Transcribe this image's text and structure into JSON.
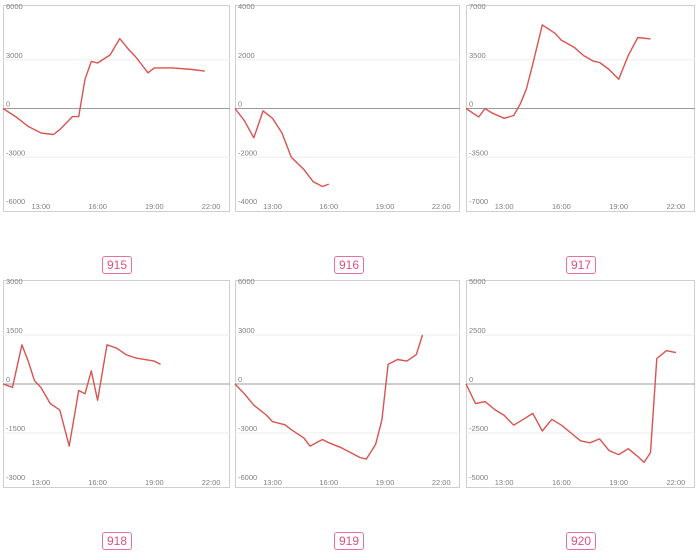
{
  "chart_data": [
    {
      "type": "line",
      "label": "915",
      "x_ticks": [
        "13:00",
        "16:00",
        "19:00",
        "22:00"
      ],
      "y_ticks": [
        6000,
        3000,
        0,
        -3000,
        -6000
      ],
      "ylim": [
        -6000,
        6000
      ],
      "xlim": [
        "11:00",
        "23:00"
      ],
      "grid": true,
      "x": [
        "11:00",
        "11:40",
        "12:20",
        "13:00",
        "13:40",
        "14:00",
        "14:40",
        "15:00",
        "15:20",
        "15:40",
        "16:00",
        "16:40",
        "17:10",
        "17:40",
        "18:00",
        "18:40",
        "19:00",
        "20:00",
        "21:00",
        "21:40"
      ],
      "series": [
        {
          "values": [
            0,
            -500,
            -1100,
            -1500,
            -1600,
            -1300,
            -500,
            -500,
            1800,
            2900,
            2800,
            3300,
            4300,
            3600,
            3200,
            2200,
            2500,
            2500,
            2400,
            2300
          ]
        }
      ]
    },
    {
      "type": "line",
      "label": "916",
      "x_ticks": [
        "13:00",
        "16:00",
        "19:00",
        "22:00"
      ],
      "y_ticks": [
        4000,
        2000,
        0,
        -2000,
        -4000
      ],
      "ylim": [
        -4000,
        4000
      ],
      "xlim": [
        "11:00",
        "23:00"
      ],
      "grid": true,
      "x": [
        "11:00",
        "11:30",
        "12:00",
        "12:30",
        "13:00",
        "13:30",
        "14:00",
        "14:40",
        "15:10",
        "15:40",
        "16:00"
      ],
      "series": [
        {
          "values": [
            0,
            -500,
            -1200,
            -100,
            -400,
            -1000,
            -2000,
            -2500,
            -3000,
            -3200,
            -3100
          ]
        }
      ]
    },
    {
      "type": "line",
      "label": "917",
      "x_ticks": [
        "13:00",
        "16:00",
        "19:00",
        "22:00"
      ],
      "y_ticks": [
        7000,
        3500,
        0,
        -3500,
        -7000
      ],
      "ylim": [
        -7000,
        7000
      ],
      "xlim": [
        "11:00",
        "23:00"
      ],
      "grid": true,
      "x": [
        "11:00",
        "11:40",
        "12:00",
        "12:20",
        "13:00",
        "13:30",
        "13:50",
        "14:10",
        "14:30",
        "15:00",
        "15:40",
        "16:00",
        "16:40",
        "17:10",
        "17:40",
        "18:00",
        "18:30",
        "19:00",
        "19:30",
        "20:00",
        "20:40"
      ],
      "series": [
        {
          "values": [
            0,
            -600,
            0,
            -300,
            -700,
            -500,
            300,
            1400,
            3200,
            6000,
            5400,
            4900,
            4400,
            3800,
            3400,
            3300,
            2800,
            2100,
            3800,
            5100,
            5000
          ]
        }
      ]
    },
    {
      "type": "line",
      "label": "918",
      "x_ticks": [
        "13:00",
        "16:00",
        "19:00",
        "22:00"
      ],
      "y_ticks": [
        3000,
        1500,
        0,
        -1500,
        -3000
      ],
      "ylim": [
        -3000,
        3000
      ],
      "xlim": [
        "11:00",
        "23:00"
      ],
      "grid": true,
      "x": [
        "11:00",
        "11:30",
        "12:00",
        "12:20",
        "12:40",
        "13:00",
        "13:30",
        "14:00",
        "14:30",
        "15:00",
        "15:20",
        "15:40",
        "16:00",
        "16:30",
        "17:00",
        "17:30",
        "18:00",
        "19:00",
        "19:20"
      ],
      "series": [
        {
          "values": [
            0,
            -100,
            1200,
            700,
            100,
            -100,
            -600,
            -800,
            -1900,
            -200,
            -300,
            400,
            -500,
            1200,
            1100,
            900,
            800,
            700,
            600
          ]
        }
      ]
    },
    {
      "type": "line",
      "label": "919",
      "x_ticks": [
        "13:00",
        "16:00",
        "19:00",
        "22:00"
      ],
      "y_ticks": [
        6000,
        3000,
        0,
        -3000,
        -6000
      ],
      "ylim": [
        -6000,
        6000
      ],
      "xlim": [
        "11:00",
        "23:00"
      ],
      "grid": true,
      "x": [
        "11:00",
        "11:30",
        "12:00",
        "12:40",
        "13:00",
        "13:40",
        "14:00",
        "14:40",
        "15:00",
        "15:40",
        "16:00",
        "16:40",
        "17:00",
        "17:40",
        "18:00",
        "18:30",
        "18:50",
        "19:10",
        "19:40",
        "20:10",
        "20:40",
        "21:00"
      ],
      "series": [
        {
          "values": [
            0,
            -600,
            -1300,
            -1900,
            -2300,
            -2500,
            -2800,
            -3300,
            -3800,
            -3400,
            -3600,
            -3900,
            -4100,
            -4500,
            -4600,
            -3700,
            -2200,
            1200,
            1500,
            1400,
            1800,
            3000
          ]
        }
      ]
    },
    {
      "type": "line",
      "label": "920",
      "x_ticks": [
        "13:00",
        "16:00",
        "19:00",
        "22:00"
      ],
      "y_ticks": [
        5000,
        2500,
        0,
        -2500,
        -5000
      ],
      "ylim": [
        -5000,
        5000
      ],
      "xlim": [
        "11:00",
        "23:00"
      ],
      "grid": true,
      "x": [
        "11:00",
        "11:30",
        "12:00",
        "12:30",
        "13:00",
        "13:30",
        "14:00",
        "14:30",
        "15:00",
        "15:30",
        "16:00",
        "16:30",
        "17:00",
        "17:30",
        "18:00",
        "18:30",
        "19:00",
        "19:30",
        "20:00",
        "20:20",
        "20:40",
        "21:00",
        "21:30",
        "22:00"
      ],
      "series": [
        {
          "values": [
            0,
            -1000,
            -900,
            -1300,
            -1600,
            -2100,
            -1800,
            -1500,
            -2400,
            -1800,
            -2100,
            -2500,
            -2900,
            -3000,
            -2800,
            -3400,
            -3600,
            -3300,
            -3700,
            -4000,
            -3500,
            1300,
            1700,
            1600
          ]
        }
      ]
    }
  ]
}
